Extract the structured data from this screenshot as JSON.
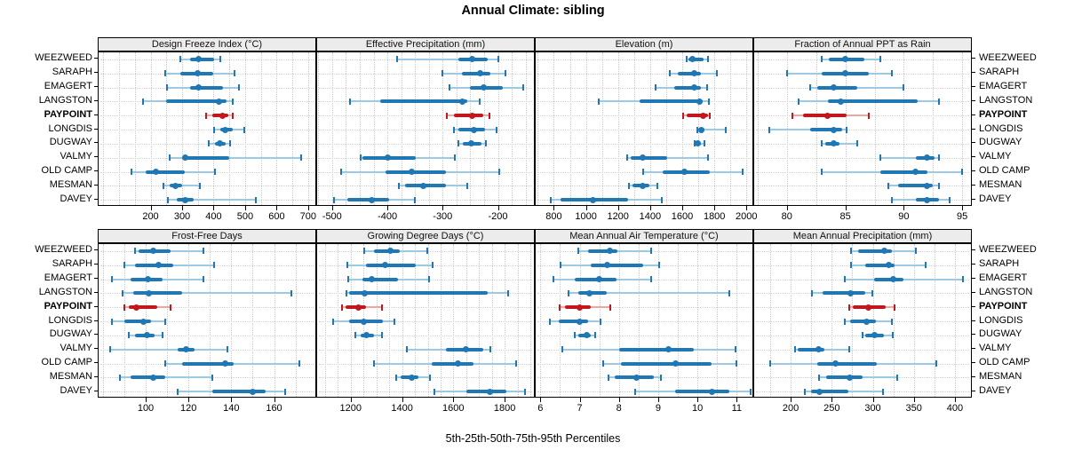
{
  "title": "Annual Climate: sibling",
  "caption": "5th-25th-50th-75th-95th Percentiles",
  "stations": [
    "WEEZWEED",
    "SARAPH",
    "EMAGERT",
    "LANGSTON",
    "PAYPOINT",
    "LONGDIS",
    "DUGWAY",
    "VALMY",
    "OLD CAMP",
    "MESMAN",
    "DAVEY"
  ],
  "highlight_station": "PAYPOINT",
  "colors": {
    "series_blue": "#1f77b4",
    "series_blue_light": "#9ec9e2",
    "highlight_red": "#c2181c",
    "highlight_red_light": "#efa6a2",
    "strip_bg": "#ececec",
    "panel_border": "#000000",
    "gridline": "#c9c9c9"
  },
  "chart_data": {
    "type": "scatter",
    "subtype": "percentile-dotplot",
    "percentiles": [
      "5th",
      "25th",
      "50th",
      "75th",
      "95th"
    ],
    "grid": true,
    "layout": "2 rows x 4 columns of panels, shared station axis",
    "panels": [
      {
        "title": "Design Freeze Index (°C)",
        "row": 0,
        "col": 0,
        "xlim": [
          35,
          723
        ],
        "ticks": [
          200,
          300,
          400,
          500,
          600,
          700
        ],
        "grid_step": 50,
        "series": [
          [
            293,
            325,
            352,
            401,
            421
          ],
          [
            247,
            295,
            350,
            400,
            465
          ],
          [
            252,
            325,
            352,
            430,
            481
          ],
          [
            176,
            250,
            416,
            441,
            460
          ],
          [
            375,
            397,
            427,
            446,
            460
          ],
          [
            402,
            420,
            438,
            460,
            497
          ],
          [
            385,
            404,
            421,
            439,
            451
          ],
          [
            261,
            299,
            310,
            450,
            679
          ],
          [
            140,
            185,
            218,
            310,
            404
          ],
          [
            240,
            260,
            278,
            300,
            357
          ],
          [
            255,
            282,
            310,
            338,
            535
          ]
        ]
      },
      {
        "title": "Effective Precipitation (mm)",
        "row": 0,
        "col": 1,
        "xlim": [
          -527,
          -135
        ],
        "ticks": [
          -500,
          -400,
          -300,
          -200
        ],
        "grid_step": 25,
        "series": [
          [
            -382,
            -272,
            -246,
            -218,
            -200
          ],
          [
            -301,
            -265,
            -232,
            -213,
            -187
          ],
          [
            -288,
            -251,
            -226,
            -191,
            -155
          ],
          [
            -468,
            -413,
            -265,
            -256,
            -233
          ],
          [
            -293,
            -280,
            -246,
            -227,
            -215
          ],
          [
            -279,
            -271,
            -243,
            -224,
            -203
          ],
          [
            -271,
            -263,
            -249,
            -230,
            -222
          ],
          [
            -449,
            -445,
            -400,
            -348,
            -278
          ],
          [
            -484,
            -403,
            -356,
            -294,
            -197
          ],
          [
            -380,
            -368,
            -335,
            -294,
            -256
          ],
          [
            -496,
            -472,
            -428,
            -397,
            -350
          ]
        ]
      },
      {
        "title": "Elevation (m)",
        "row": 0,
        "col": 2,
        "xlim": [
          687,
          2037
        ],
        "ticks": [
          800,
          1000,
          1200,
          1400,
          1600,
          1800,
          2000
        ],
        "grid_step": 100,
        "series": [
          [
            1625,
            1641,
            1662,
            1735,
            1762
          ],
          [
            1520,
            1570,
            1673,
            1716,
            1817
          ],
          [
            1435,
            1550,
            1673,
            1716,
            1754
          ],
          [
            1081,
            1333,
            1707,
            1726,
            1766
          ],
          [
            1603,
            1627,
            1731,
            1762,
            1772
          ],
          [
            1695,
            1703,
            1717,
            1740,
            1871
          ],
          [
            1676,
            1684,
            1695,
            1718,
            1738
          ],
          [
            1256,
            1281,
            1351,
            1507,
            1762
          ],
          [
            1355,
            1480,
            1612,
            1771,
            1976
          ],
          [
            1270,
            1289,
            1355,
            1397,
            1446
          ],
          [
            782,
            840,
            1041,
            1260,
            1474
          ]
        ]
      },
      {
        "title": "Fraction of Annual PPT as Rain",
        "row": 0,
        "col": 3,
        "xlim": [
          77.2,
          95.75
        ],
        "ticks": [
          80,
          85,
          90,
          95
        ],
        "grid_step": 2.5,
        "series": [
          [
            83,
            83.6,
            85,
            86.6,
            88
          ],
          [
            80,
            83,
            85,
            87,
            89
          ],
          [
            82,
            82.6,
            84,
            86,
            90
          ],
          [
            81,
            83.5,
            84.6,
            91.2,
            93
          ],
          [
            80.5,
            81.4,
            83.5,
            85.1,
            87
          ],
          [
            78.5,
            82,
            84,
            84.7,
            85.1
          ],
          [
            83,
            83.3,
            84,
            84.5,
            86
          ],
          [
            88,
            91,
            92,
            92.6,
            93
          ],
          [
            83,
            88,
            91,
            92,
            95
          ],
          [
            88.7,
            89.5,
            92,
            92.5,
            93
          ],
          [
            89,
            91,
            92,
            93,
            93.9
          ]
        ]
      },
      {
        "title": "Frost-Free Days",
        "row": 1,
        "col": 0,
        "xlim": [
          78,
          179.3
        ],
        "ticks": [
          100,
          120,
          140,
          160
        ],
        "grid_step": 10,
        "series": [
          [
            95,
            96.5,
            103.5,
            111.5,
            127
          ],
          [
            90,
            95,
            106,
            113,
            132
          ],
          [
            84,
            93,
            101,
            108,
            127
          ],
          [
            89,
            94,
            101.5,
            117,
            168
          ],
          [
            90,
            92,
            95.5,
            105.5,
            111.5
          ],
          [
            84,
            90,
            99,
            102.5,
            109
          ],
          [
            92,
            95,
            100.5,
            104,
            108
          ],
          [
            83.5,
            115,
            119,
            123,
            138
          ],
          [
            109,
            117,
            137,
            141,
            172
          ],
          [
            88,
            93,
            103.5,
            109,
            131
          ],
          [
            115,
            131,
            150,
            156,
            165
          ]
        ]
      },
      {
        "title": "Growing Degree Days (°C)",
        "row": 1,
        "col": 1,
        "xlim": [
          1069,
          1914
        ],
        "ticks": [
          1200,
          1400,
          1600,
          1800
        ],
        "grid_step": 50,
        "series": [
          [
            1251,
            1290,
            1354,
            1392,
            1497
          ],
          [
            1185,
            1260,
            1335,
            1455,
            1520
          ],
          [
            1190,
            1245,
            1283,
            1386,
            1504
          ],
          [
            1183,
            1192,
            1255,
            1733,
            1813
          ],
          [
            1166,
            1180,
            1229,
            1258,
            1322
          ],
          [
            1130,
            1195,
            1250,
            1325,
            1370
          ],
          [
            1217,
            1240,
            1262,
            1290,
            1320
          ],
          [
            1417,
            1571,
            1649,
            1717,
            1745
          ],
          [
            1291,
            1514,
            1617,
            1680,
            1845
          ],
          [
            1377,
            1395,
            1437,
            1463,
            1509
          ],
          [
            1526,
            1651,
            1743,
            1806,
            1880
          ]
        ]
      },
      {
        "title": "Mean Annual Air Temperature (°C)",
        "row": 1,
        "col": 2,
        "xlim": [
          5.88,
          11.4
        ],
        "ticks": [
          6,
          7,
          8,
          9,
          10,
          11
        ],
        "grid_step": 0.5,
        "series": [
          [
            6.97,
            7.22,
            7.76,
            7.96,
            8.82
          ],
          [
            6.51,
            7.29,
            7.7,
            8.63,
            9.03
          ],
          [
            6.34,
            6.88,
            7.49,
            7.93,
            8.81
          ],
          [
            6.72,
            6.96,
            7.25,
            7.7,
            10.82
          ],
          [
            6.49,
            6.62,
            7.0,
            7.29,
            7.78
          ],
          [
            6.25,
            6.47,
            6.99,
            7.22,
            7.52
          ],
          [
            6.87,
            6.96,
            7.18,
            7.29,
            7.39
          ],
          [
            6.55,
            8.0,
            9.27,
            9.9,
            10.97
          ],
          [
            7.59,
            8.04,
            9.44,
            10.35,
            10.99
          ],
          [
            7.74,
            7.9,
            8.45,
            8.9,
            9.06
          ],
          [
            8.41,
            9.42,
            10.37,
            10.8,
            11.36
          ]
        ]
      },
      {
        "title": "Mean Annual Precipitation (mm)",
        "row": 1,
        "col": 3,
        "xlim": [
          155.5,
          419.6
        ],
        "ticks": [
          200,
          250,
          300,
          350,
          400
        ],
        "grid_step": 25,
        "series": [
          [
            273,
            282,
            314,
            323,
            352
          ],
          [
            273,
            291,
            319,
            327,
            364
          ],
          [
            266,
            302,
            325,
            337,
            410
          ],
          [
            226,
            239,
            273,
            291,
            299
          ],
          [
            271,
            276,
            295,
            316,
            327
          ],
          [
            266,
            272,
            292,
            304,
            323
          ],
          [
            287,
            291,
            302,
            314,
            324
          ],
          [
            205,
            209,
            234,
            241,
            271
          ],
          [
            175,
            232,
            255,
            305,
            377
          ],
          [
            235,
            243,
            272,
            288,
            330
          ],
          [
            217,
            225,
            235,
            270,
            312
          ]
        ]
      }
    ]
  }
}
